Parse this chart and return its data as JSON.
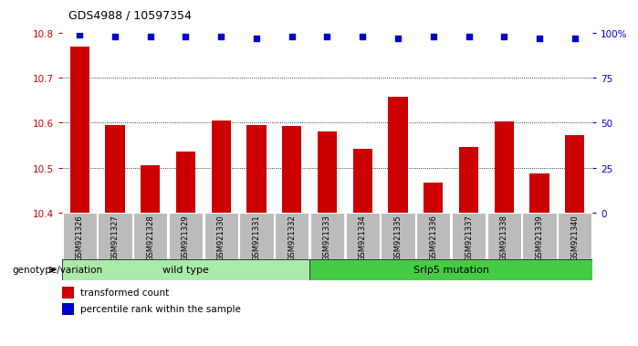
{
  "title": "GDS4988 / 10597354",
  "samples": [
    "GSM921326",
    "GSM921327",
    "GSM921328",
    "GSM921329",
    "GSM921330",
    "GSM921331",
    "GSM921332",
    "GSM921333",
    "GSM921334",
    "GSM921335",
    "GSM921336",
    "GSM921337",
    "GSM921338",
    "GSM921339",
    "GSM921340"
  ],
  "bar_values": [
    10.77,
    10.595,
    10.505,
    10.535,
    10.605,
    10.595,
    10.593,
    10.581,
    10.542,
    10.657,
    10.466,
    10.547,
    10.602,
    10.487,
    10.573
  ],
  "percentile_values": [
    99,
    98,
    98,
    98,
    98,
    97,
    98,
    98,
    98,
    97,
    98,
    98,
    98,
    97,
    97
  ],
  "bar_color": "#cc0000",
  "dot_color": "#0000cc",
  "ylim_left": [
    10.4,
    10.8
  ],
  "ylim_right": [
    0,
    100
  ],
  "yticks_left": [
    10.4,
    10.5,
    10.6,
    10.7,
    10.8
  ],
  "yticks_right": [
    0,
    25,
    50,
    75,
    100
  ],
  "grid_lines": [
    10.5,
    10.6,
    10.7
  ],
  "wild_type_count": 7,
  "mutation_count": 8,
  "wild_type_label": "wild type",
  "mutation_label": "Srlp5 mutation",
  "group_label": "genotype/variation",
  "legend_bar_label": "transformed count",
  "legend_dot_label": "percentile rank within the sample",
  "wild_type_color": "#aaeaaa",
  "mutation_color": "#44cc44",
  "bar_width": 0.55,
  "xticklabel_bg": "#bbbbbb"
}
